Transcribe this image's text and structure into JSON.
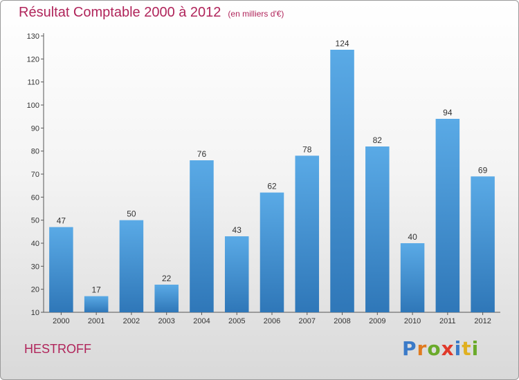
{
  "header": {
    "title": "Résultat Comptable 2000 à 2012",
    "subtitle": "(en milliers d'€)"
  },
  "footer": {
    "commune": "HESTROFF",
    "logo_text": "Proxiti"
  },
  "colors": {
    "title": "#b0245a",
    "bar_top": "#5aaae6",
    "bar_bottom": "#2f77b8"
  },
  "chart_data": {
    "type": "bar",
    "title": "Résultat Comptable 2000 à 2012",
    "subtitle": "(en milliers d'€)",
    "categories": [
      "2000",
      "2001",
      "2002",
      "2003",
      "2004",
      "2005",
      "2006",
      "2007",
      "2008",
      "2009",
      "2010",
      "2011",
      "2012"
    ],
    "values": [
      47,
      17,
      50,
      22,
      76,
      43,
      62,
      78,
      124,
      82,
      40,
      94,
      69
    ],
    "ylim": [
      10,
      130
    ],
    "yticks": [
      10,
      20,
      30,
      40,
      50,
      60,
      70,
      80,
      90,
      100,
      110,
      120,
      130
    ],
    "grid": false,
    "data_labels": true
  }
}
